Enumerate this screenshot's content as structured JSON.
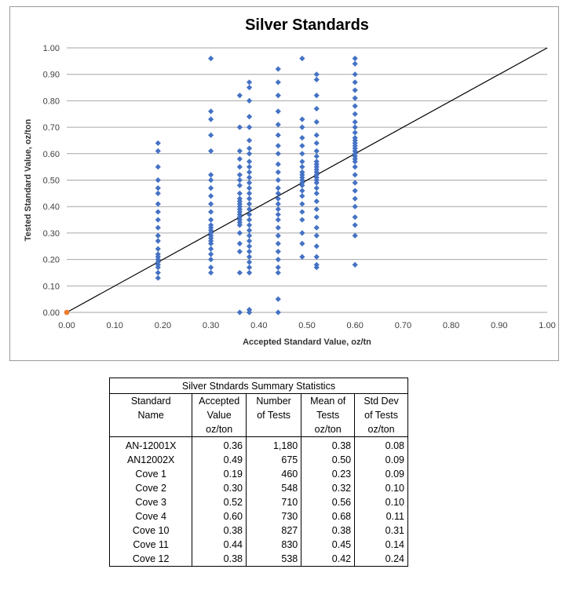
{
  "chart_data": {
    "type": "scatter",
    "title": "Silver Standards",
    "xlabel": "Accepted Standard Value, oz/tn",
    "ylabel": "Tested Standard Value, oz/ton",
    "xlim": [
      0,
      1
    ],
    "ylim": [
      0,
      1
    ],
    "x_ticks": [
      "0.00",
      "0.10",
      "0.20",
      "0.30",
      "0.40",
      "0.50",
      "0.60",
      "0.70",
      "0.80",
      "0.90",
      "1.00"
    ],
    "y_ticks": [
      "0.00",
      "0.10",
      "0.20",
      "0.30",
      "0.40",
      "0.50",
      "0.60",
      "0.70",
      "0.80",
      "0.90",
      "1.00"
    ],
    "grid": "horizontal",
    "legend": "none",
    "colors": {
      "points": "#4472C4",
      "line": "#000000",
      "origin": "#ED7D31",
      "grid": "#a6a6a6"
    },
    "reference_line": {
      "x": [
        0,
        1
      ],
      "y": [
        0,
        1
      ]
    },
    "origin_point": {
      "x": 0,
      "y": 0
    },
    "series": [
      {
        "x": 0.19,
        "y": [
          0.13,
          0.15,
          0.17,
          0.18,
          0.19,
          0.2,
          0.21,
          0.22,
          0.24,
          0.27,
          0.29,
          0.32,
          0.35,
          0.38,
          0.41,
          0.45,
          0.47,
          0.5,
          0.55,
          0.61,
          0.64
        ]
      },
      {
        "x": 0.3,
        "y": [
          0.15,
          0.17,
          0.2,
          0.22,
          0.24,
          0.26,
          0.27,
          0.28,
          0.29,
          0.3,
          0.31,
          0.32,
          0.33,
          0.35,
          0.38,
          0.41,
          0.44,
          0.47,
          0.5,
          0.52,
          0.61,
          0.67,
          0.73,
          0.76,
          0.96
        ]
      },
      {
        "x": 0.36,
        "y": [
          0.0,
          0.15,
          0.23,
          0.26,
          0.3,
          0.33,
          0.34,
          0.35,
          0.36,
          0.37,
          0.38,
          0.39,
          0.4,
          0.41,
          0.42,
          0.43,
          0.45,
          0.48,
          0.5,
          0.52,
          0.55,
          0.58,
          0.61,
          0.7,
          0.82
        ]
      },
      {
        "x": 0.38,
        "y": [
          0.0,
          0.01,
          0.15,
          0.17,
          0.19,
          0.21,
          0.23,
          0.25,
          0.27,
          0.29,
          0.31,
          0.33,
          0.35,
          0.37,
          0.39,
          0.41,
          0.43,
          0.45,
          0.47,
          0.49,
          0.51,
          0.53,
          0.55,
          0.57,
          0.6,
          0.62,
          0.65,
          0.7,
          0.74,
          0.8,
          0.85,
          0.87
        ]
      },
      {
        "x": 0.44,
        "y": [
          0.0,
          0.05,
          0.15,
          0.17,
          0.2,
          0.23,
          0.26,
          0.29,
          0.32,
          0.35,
          0.37,
          0.39,
          0.41,
          0.43,
          0.45,
          0.47,
          0.5,
          0.53,
          0.56,
          0.6,
          0.63,
          0.67,
          0.71,
          0.76,
          0.82,
          0.87,
          0.92
        ]
      },
      {
        "x": 0.49,
        "y": [
          0.21,
          0.26,
          0.3,
          0.35,
          0.38,
          0.41,
          0.44,
          0.46,
          0.48,
          0.49,
          0.5,
          0.51,
          0.52,
          0.53,
          0.55,
          0.57,
          0.6,
          0.63,
          0.66,
          0.7,
          0.73,
          0.96
        ]
      },
      {
        "x": 0.52,
        "y": [
          0.17,
          0.18,
          0.21,
          0.25,
          0.29,
          0.32,
          0.36,
          0.39,
          0.42,
          0.45,
          0.47,
          0.49,
          0.5,
          0.51,
          0.52,
          0.53,
          0.54,
          0.55,
          0.56,
          0.57,
          0.59,
          0.61,
          0.64,
          0.67,
          0.72,
          0.77,
          0.82,
          0.88,
          0.9
        ]
      },
      {
        "x": 0.6,
        "y": [
          0.18,
          0.29,
          0.33,
          0.36,
          0.4,
          0.43,
          0.46,
          0.49,
          0.52,
          0.55,
          0.57,
          0.58,
          0.59,
          0.6,
          0.61,
          0.62,
          0.63,
          0.64,
          0.65,
          0.66,
          0.68,
          0.7,
          0.72,
          0.75,
          0.78,
          0.81,
          0.84,
          0.87,
          0.9,
          0.94,
          0.96
        ]
      }
    ]
  },
  "table": {
    "caption": "Silver Stndards Summary Statistics",
    "headers": [
      [
        "Standard",
        "Name",
        ""
      ],
      [
        "Accepted",
        "Value",
        "oz/ton"
      ],
      [
        "Number",
        "of Tests",
        ""
      ],
      [
        "Mean of",
        "Tests",
        "oz/ton"
      ],
      [
        "Std Dev",
        "of Tests",
        "oz/ton"
      ]
    ],
    "rows": [
      [
        "AN-12001X",
        "0.36",
        "1,180",
        "0.38",
        "0.08"
      ],
      [
        "AN12002X",
        "0.49",
        "675",
        "0.50",
        "0.09"
      ],
      [
        "Cove 1",
        "0.19",
        "460",
        "0.23",
        "0.09"
      ],
      [
        "Cove 2",
        "0.30",
        "548",
        "0.32",
        "0.10"
      ],
      [
        "Cove 3",
        "0.52",
        "710",
        "0.56",
        "0.10"
      ],
      [
        "Cove 4",
        "0.60",
        "730",
        "0.68",
        "0.11"
      ],
      [
        "Cove 10",
        "0.38",
        "827",
        "0.38",
        "0.31"
      ],
      [
        "Cove 11",
        "0.44",
        "830",
        "0.45",
        "0.14"
      ],
      [
        "Cove 12",
        "0.38",
        "538",
        "0.42",
        "0.24"
      ]
    ]
  }
}
